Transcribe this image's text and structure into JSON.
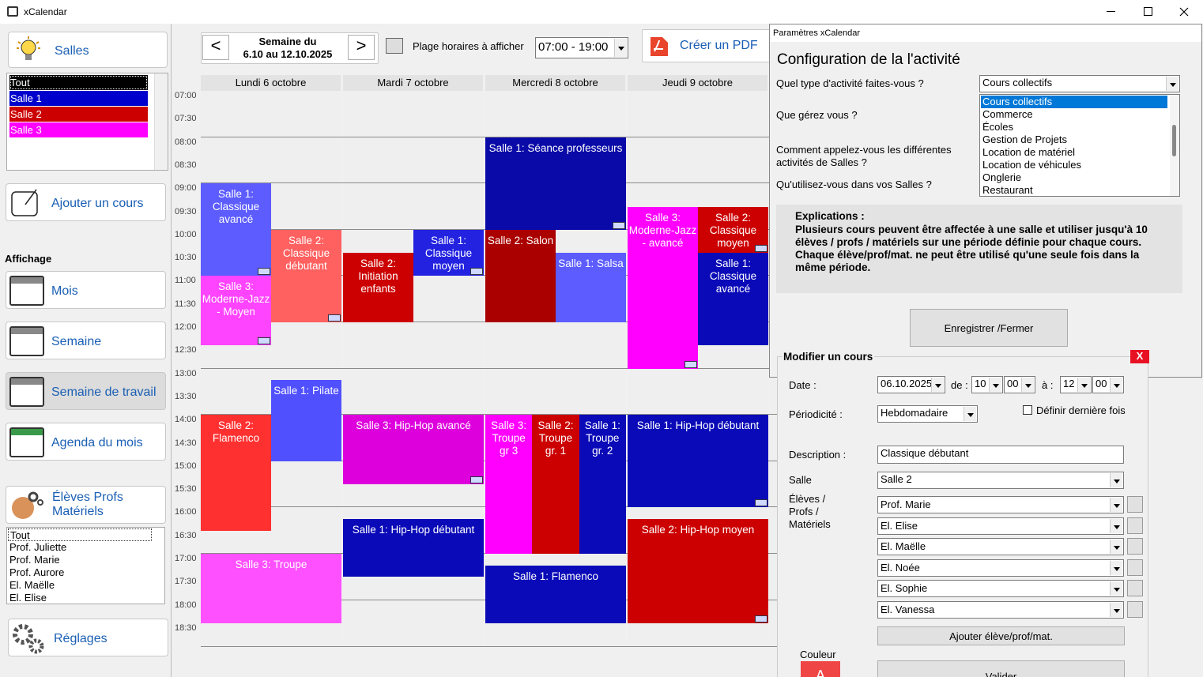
{
  "window": {
    "title": "xCalendar"
  },
  "sidebar": {
    "salles_button": "Salles",
    "salles_list": [
      {
        "label": "Tout",
        "color": "#000000"
      },
      {
        "label": "Salle 1",
        "color": "#0000cc"
      },
      {
        "label": "Salle 2",
        "color": "#cc0000"
      },
      {
        "label": "Salle 3",
        "color": "#ff00ff"
      }
    ],
    "add_course": "Ajouter un cours",
    "affichage_label": "Affichage",
    "views": [
      "Mois",
      "Semaine",
      "Semaine de travail",
      "Agenda du mois"
    ],
    "people_button": "Élèves Profs Matériels",
    "people_list": [
      "Tout",
      "Prof. Juliette",
      "Prof. Marie",
      "Prof. Aurore",
      "El. Maëlle",
      "El. Elise"
    ],
    "settings_button": "Réglages"
  },
  "toolbar": {
    "prev": "<",
    "week_label": "Semaine du",
    "week_range": "6.10 au 12.10.2025",
    "next": ">",
    "range_label": "Plage horaires à afficher",
    "range_value": "07:00 - 19:00",
    "pdf_button": "Créer un PDF"
  },
  "calendar": {
    "days": [
      "Lundi 6 octobre",
      "Mardi 7 octobre",
      "Mercredi 8 octobre",
      "Jeudi 9 octobre"
    ],
    "times": [
      "07:00",
      "07:30",
      "08:00",
      "08:30",
      "09:00",
      "09:30",
      "10:00",
      "10:30",
      "11:00",
      "11:30",
      "12:00",
      "12:30",
      "13:00",
      "13:30",
      "14:00",
      "14:30",
      "15:00",
      "15:30",
      "16:00",
      "16:30",
      "17:00",
      "17:30",
      "18:00",
      "18:30"
    ],
    "events": [
      {
        "label": "Salle 1: Classique avancé",
        "color": "#5c5cff"
      },
      {
        "label": "Salle 3: Moderne-Jazz - Moyen",
        "color": "#ff44ff"
      },
      {
        "label": "Salle 2: Classique débutant",
        "color": "#ff6060"
      },
      {
        "label": "Salle 1: Pilate",
        "color": "#5050ff"
      },
      {
        "label": "Salle 2: Flamenco",
        "color": "#ff3030"
      },
      {
        "label": "Salle 3: Troupe",
        "color": "#ff50ff"
      },
      {
        "label": "Salle 2: Initiation enfants",
        "color": "#cc0000"
      },
      {
        "label": "Salle 1: Classique moyen",
        "color": "#2222e0"
      },
      {
        "label": "Salle 3: Hip-Hop avancé",
        "color": "#dd00dd"
      },
      {
        "label": "Salle 1: Hip-Hop débutant",
        "color": "#0a0ab8"
      },
      {
        "label": "Salle 1: Séance professeurs",
        "color": "#0a0aa8"
      },
      {
        "label": "Salle 2: Salon",
        "color": "#aa0000"
      },
      {
        "label": "Salle 1: Salsa",
        "color": "#5c5cff"
      },
      {
        "label": "Salle 3: Troupe gr 3",
        "color": "#ff00ff"
      },
      {
        "label": "Salle 2: Troupe gr. 1",
        "color": "#cc0000"
      },
      {
        "label": "Salle 1: Troupe gr. 2",
        "color": "#0a0ab8"
      },
      {
        "label": "Salle 1: Flamenco",
        "color": "#0a0ab8"
      },
      {
        "label": "Salle 3: Moderne-Jazz - avancé",
        "color": "#ff00ff"
      },
      {
        "label": "Salle 2: Classique moyen",
        "color": "#cc0000"
      },
      {
        "label": "Salle 1: Classique avancé",
        "color": "#0a0ab8"
      },
      {
        "label": "Salle 1: Hip-Hop débutant",
        "color": "#0a0ab8"
      },
      {
        "label": "Salle 2: Hip-Hop moyen",
        "color": "#cc0000"
      }
    ]
  },
  "settings_dialog": {
    "title": "Paramètres xCalendar",
    "heading": "Configuration de la l'activité",
    "questions": [
      "Quel type d'activité faites-vous ?",
      "Que gérez vous ?",
      "Comment appelez-vous les différentes activités de Salles ?",
      "Qu'utilisez-vous dans vos Salles ?"
    ],
    "activity_value": "Cours collectifs",
    "activity_options": [
      "Cours collectifs",
      "Commerce",
      "Écoles",
      "Gestion de Projets",
      "Location de matériel",
      "Location de véhicules",
      "Onglerie",
      "Restaurant"
    ],
    "explanation_title": "Explications :",
    "explanation_text": "Plusieurs cours peuvent être affectée à une salle et utiliser jusqu'à 10 élèves / profs / matériels sur une période définie pour chaque cours. Chaque élève/prof/mat. ne peut être utilisé qu'une seule fois dans la même période.",
    "save_button": "Enregistrer /Fermer"
  },
  "edit_panel": {
    "title": "Modifier un cours",
    "close": "X",
    "date_label": "Date :",
    "date_value": "06.10.2025",
    "from_label": "de :",
    "from_hour": "10",
    "from_min": "00",
    "to_label": "à :",
    "to_hour": "12",
    "to_min": "00",
    "period_label": "Périodicité :",
    "period_value": "Hebdomadaire",
    "last_time": "Définir dernière fois",
    "description_label": "Description :",
    "description_value": "Classique débutant",
    "room_label": "Salle",
    "room_value": "Salle 2",
    "people_label": "Élèves / Profs / Matériels",
    "people": [
      "Prof. Marie",
      "El. Elise",
      "El. Maëlle",
      "El. Noée",
      "El. Sophie",
      "El. Vanessa"
    ],
    "add_button": "Ajouter élève/prof/mat.",
    "color_label": "Couleur",
    "color_sample": "A",
    "validate_button": "Valider"
  }
}
